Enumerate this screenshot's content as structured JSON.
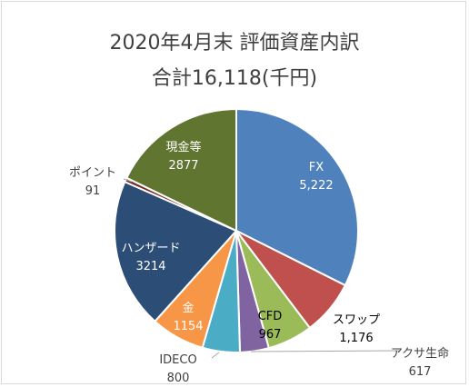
{
  "chart_data": {
    "type": "pie",
    "title": "2020年4月末 評価資産内訳",
    "subtitle": "合計16,118(千円)",
    "slices": [
      {
        "name": "FX",
        "value_label": "5,222",
        "value": 5222,
        "color": "#4f81bd"
      },
      {
        "name": "スワップ",
        "value_label": "1,176",
        "value": 1176,
        "color": "#c0504d"
      },
      {
        "name": "CFD",
        "value_label": "967",
        "value": 967,
        "color": "#9bbb59"
      },
      {
        "name": "アクサ生命",
        "value_label": "617",
        "value": 617,
        "color": "#8064a2"
      },
      {
        "name": "IDECO",
        "value_label": "800",
        "value": 800,
        "color": "#4bacc6"
      },
      {
        "name": "金",
        "value_label": "1154",
        "value": 1154,
        "color": "#f79646"
      },
      {
        "name": "ハンザード",
        "value_label": "3214",
        "value": 3214,
        "color": "#2c4d75"
      },
      {
        "name": "ポイント",
        "value_label": "91",
        "value": 91,
        "color": "#772c2a"
      },
      {
        "name": "現金等",
        "value_label": "2877",
        "value": 2877,
        "color": "#5f7530"
      }
    ]
  }
}
